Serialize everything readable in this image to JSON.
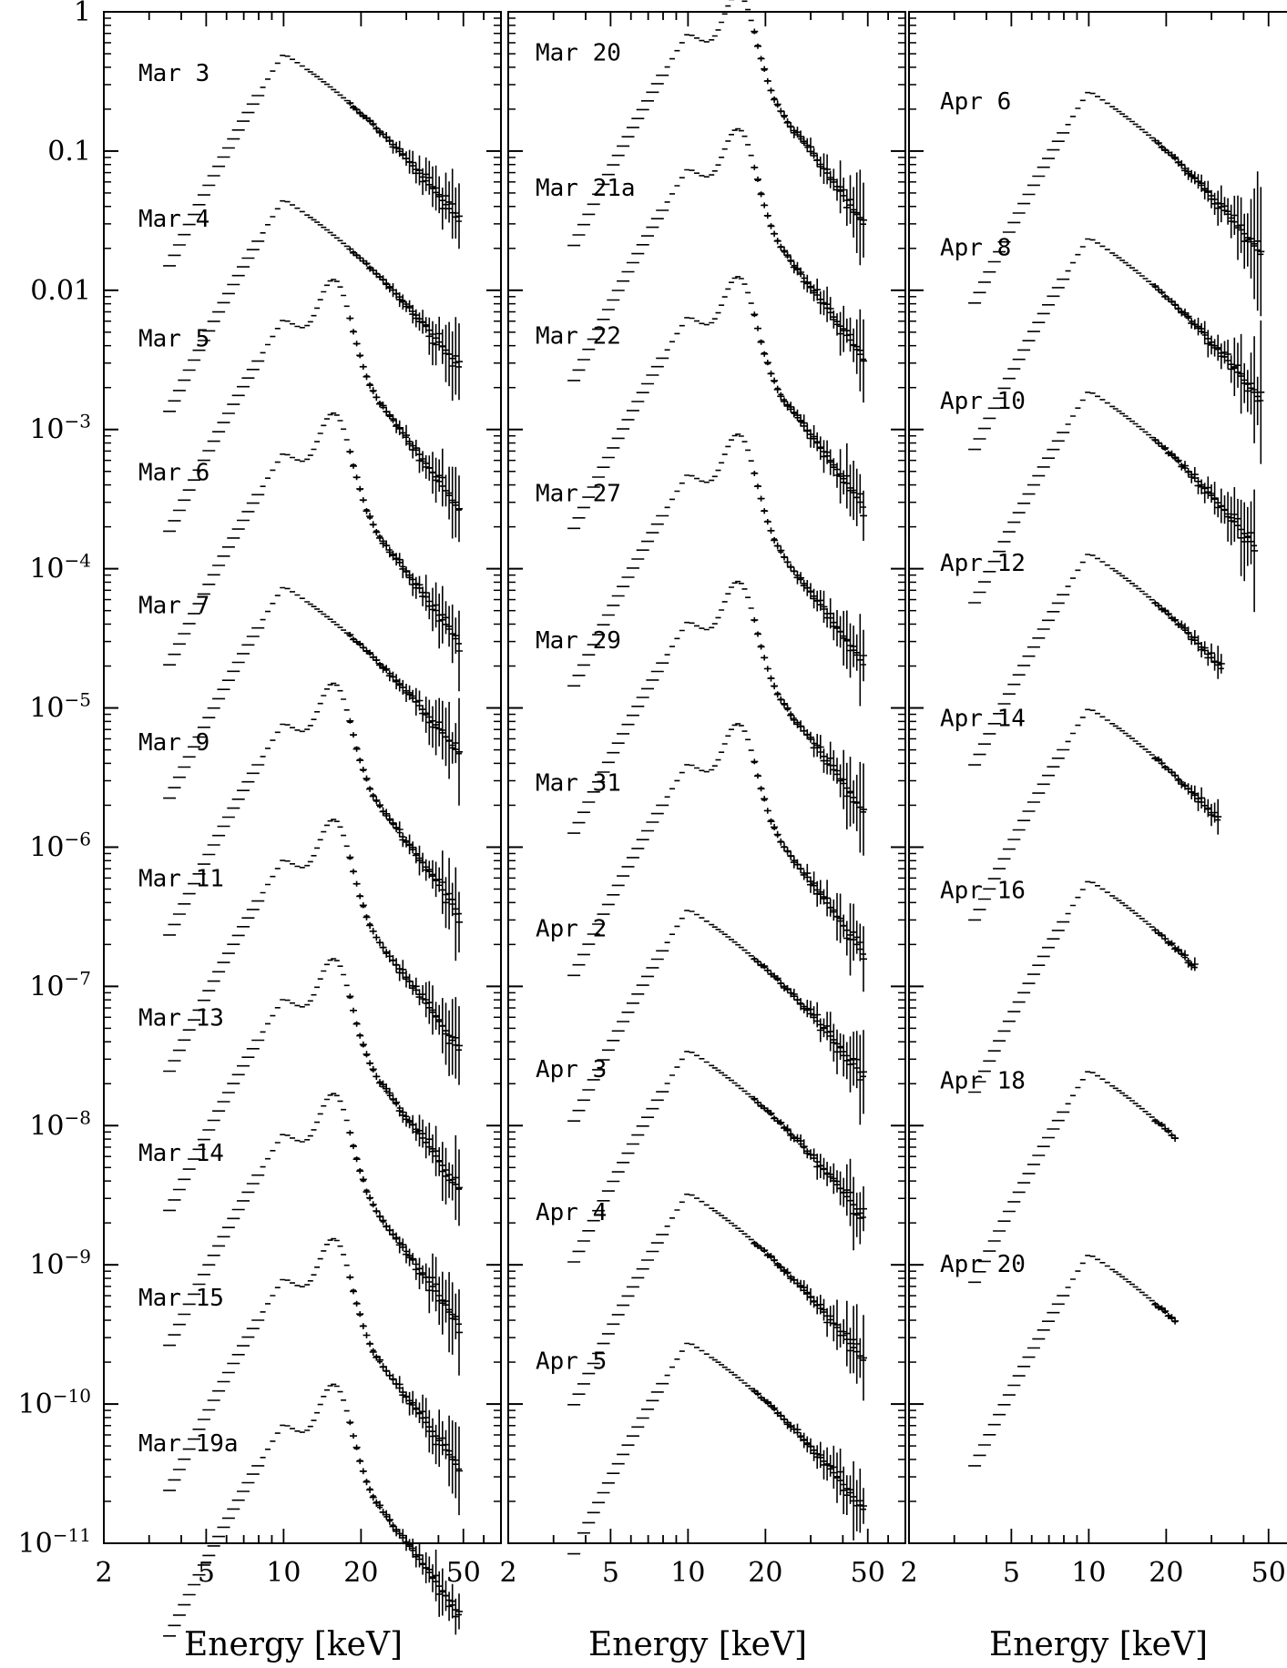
{
  "chart_data": {
    "type": "scatter",
    "y_scale": "log",
    "x_scale": "log",
    "ylim": [
      1e-11,
      1
    ],
    "y_ticks": [
      {
        "v": 1,
        "label": "1"
      },
      {
        "v": 0.1,
        "label": "0.1"
      },
      {
        "v": 0.01,
        "label": "0.01"
      },
      {
        "v": 0.001,
        "label": "10−3"
      },
      {
        "v": 0.0001,
        "label": "10−4"
      },
      {
        "v": 1e-05,
        "label": "10−5"
      },
      {
        "v": 1e-06,
        "label": "10−6"
      },
      {
        "v": 1e-07,
        "label": "10−7"
      },
      {
        "v": 1e-08,
        "label": "10−8"
      },
      {
        "v": 1e-09,
        "label": "10−9"
      },
      {
        "v": 1e-10,
        "label": "10−10"
      },
      {
        "v": 1e-11,
        "label": "10−11"
      }
    ],
    "panels": [
      {
        "xlabel": "Energy [keV]",
        "xlim": [
          2,
          70
        ],
        "x_ticks": [
          {
            "v": 2,
            "label": "2"
          },
          {
            "v": 5,
            "label": "5"
          },
          {
            "v": 10,
            "label": "10"
          },
          {
            "v": 20,
            "label": "20"
          },
          {
            "v": 50,
            "label": "50"
          }
        ],
        "series": [
          {
            "name": "Mar 3",
            "peak": 0.5,
            "shape": "single",
            "emax": 49
          },
          {
            "name": "Mar 4",
            "peak": 0.045,
            "shape": "single",
            "emax": 49
          },
          {
            "name": "Mar 5",
            "peak": 0.0062,
            "shape": "double",
            "emax": 49
          },
          {
            "name": "Mar 6",
            "peak": 0.00068,
            "shape": "double",
            "emax": 49
          },
          {
            "name": "Mar 7",
            "peak": 7.5e-05,
            "shape": "single",
            "emax": 49
          },
          {
            "name": "Mar 9",
            "peak": 7.8e-06,
            "shape": "double",
            "emax": 49
          },
          {
            "name": "Mar 11",
            "peak": 8.2e-07,
            "shape": "double",
            "emax": 49
          },
          {
            "name": "Mar 13",
            "peak": 8.2e-08,
            "shape": "double",
            "emax": 49
          },
          {
            "name": "Mar 14",
            "peak": 8.8e-09,
            "shape": "double",
            "emax": 49
          },
          {
            "name": "Mar 15",
            "peak": 8e-10,
            "shape": "double",
            "emax": 49
          },
          {
            "name": "Mar 19a",
            "peak": 7.2e-11,
            "shape": "double",
            "emax": 49
          }
        ]
      },
      {
        "xlabel": "Energy [keV]",
        "xlim": [
          2,
          70
        ],
        "x_ticks": [
          {
            "v": 2,
            "label": "2"
          },
          {
            "v": 5,
            "label": "5"
          },
          {
            "v": 10,
            "label": "10"
          },
          {
            "v": 20,
            "label": "20"
          },
          {
            "v": 50,
            "label": "50"
          }
        ],
        "series": [
          {
            "name": "Mar 20",
            "peak": 0.7,
            "shape": "double",
            "emax": 49
          },
          {
            "name": "Mar 21a",
            "peak": 0.075,
            "shape": "double",
            "emax": 49
          },
          {
            "name": "Mar 22",
            "peak": 0.0065,
            "shape": "double",
            "emax": 49
          },
          {
            "name": "Mar 27",
            "peak": 0.00048,
            "shape": "double",
            "emax": 49
          },
          {
            "name": "Mar 29",
            "peak": 4.2e-05,
            "shape": "double",
            "emax": 49
          },
          {
            "name": "Mar 31",
            "peak": 4e-06,
            "shape": "double",
            "emax": 49
          },
          {
            "name": "Apr 2",
            "peak": 3.6e-07,
            "shape": "single",
            "emax": 49
          },
          {
            "name": "Apr 3",
            "peak": 3.5e-08,
            "shape": "single",
            "emax": 49
          },
          {
            "name": "Apr 4",
            "peak": 3.3e-09,
            "shape": "single",
            "emax": 49
          },
          {
            "name": "Apr 5",
            "peak": 2.8e-10,
            "shape": "single",
            "emax": 49
          }
        ]
      },
      {
        "xlabel": "Energy [keV]",
        "xlim": [
          2,
          70
        ],
        "x_ticks": [
          {
            "v": 2,
            "label": "2"
          },
          {
            "v": 5,
            "label": "5"
          },
          {
            "v": 10,
            "label": "10"
          },
          {
            "v": 20,
            "label": "20"
          },
          {
            "v": 50,
            "label": "50"
          }
        ],
        "series": [
          {
            "name": "Apr 6",
            "peak": 0.27,
            "shape": "single",
            "emax": 48
          },
          {
            "name": "Apr 8",
            "peak": 0.024,
            "shape": "single",
            "emax": 48
          },
          {
            "name": "Apr 10",
            "peak": 0.0019,
            "shape": "single",
            "emax": 45
          },
          {
            "name": "Apr 12",
            "peak": 0.00013,
            "shape": "single",
            "emax": 33
          },
          {
            "name": "Apr 14",
            "peak": 1e-05,
            "shape": "single",
            "emax": 32
          },
          {
            "name": "Apr 16",
            "peak": 5.8e-07,
            "shape": "single",
            "emax": 26
          },
          {
            "name": "Apr 18",
            "peak": 2.5e-08,
            "shape": "single",
            "emax": 22
          },
          {
            "name": "Apr 20",
            "peak": 1.2e-09,
            "shape": "single",
            "emax": 22
          }
        ]
      }
    ]
  }
}
